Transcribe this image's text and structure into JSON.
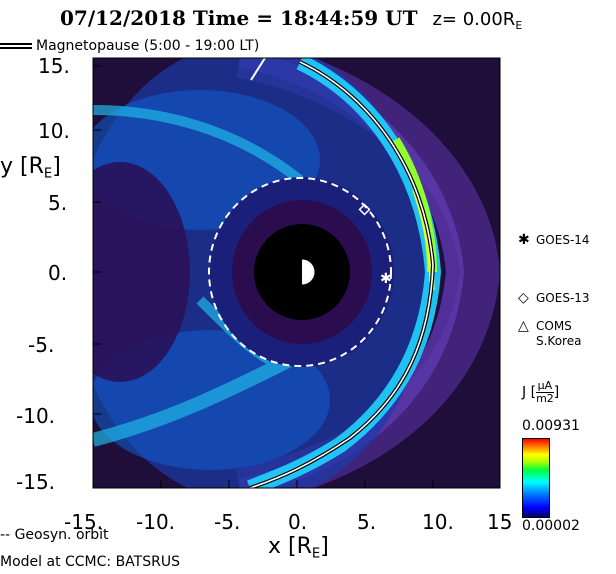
{
  "header": {
    "title": "07/12/2018 Time = 18:44:59 UT",
    "z_label": "z= 0.00R",
    "z_sub": "E"
  },
  "legend": {
    "magnetopause": "Magnetopause (5:00 - 19:00 LT)",
    "geosyn": "Geosyn. orbit"
  },
  "axes": {
    "y_label_main": "y [R",
    "y_label_sub": "E",
    "y_label_end": "]",
    "x_label_main": "x [R",
    "x_label_sub": "E",
    "x_label_end": "]",
    "x_ticks": [
      "-15.",
      "-10.",
      "-5.",
      "0.",
      "5.",
      "10.",
      "15"
    ],
    "y_ticks": [
      "15.",
      "10.",
      "5.",
      "0.",
      "-5.",
      "-10.",
      "-15."
    ]
  },
  "satellites": [
    {
      "symbol": "✱",
      "name": "GOES-14"
    },
    {
      "symbol": "◇",
      "name": "GOES-13"
    },
    {
      "symbol": "△",
      "name": "COMS",
      "name2": "S.Korea"
    }
  ],
  "colorbar": {
    "label": "J",
    "unit_num": "μA",
    "unit_den": "m2",
    "max": "0.00931",
    "min": "0.00002"
  },
  "footer": {
    "model": "Model at CCMC: BATSRUS"
  }
}
